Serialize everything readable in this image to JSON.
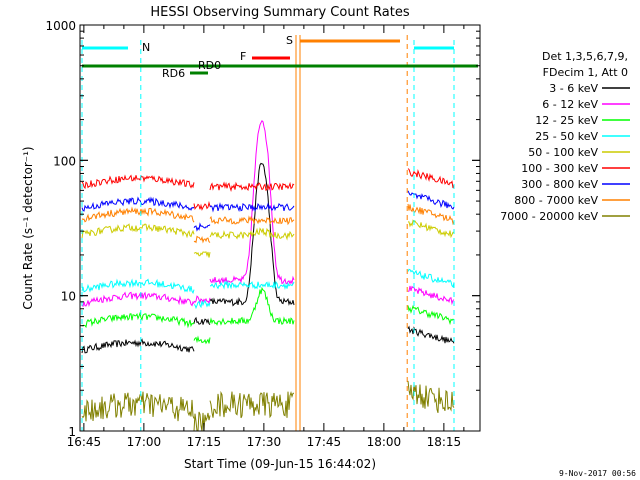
{
  "chart_data": {
    "type": "line",
    "title": "HESSI Observing Summary Count Rates",
    "xlabel": "Start Time (09-Jun-15 16:44:02)",
    "ylabel": "Count Rate (s⁻¹ detector⁻¹)",
    "y_scale": "log",
    "ylim": [
      1,
      1000
    ],
    "xlim_minutes": [
      0,
      100
    ],
    "y_tick_labels": [
      "1",
      "10",
      "100",
      "1000"
    ],
    "x_tick_labels": [
      "16:45",
      "17:00",
      "17:15",
      "17:30",
      "17:45",
      "18:00",
      "18:15"
    ],
    "legend": {
      "header1": "Det 1,3,5,6,7,9,",
      "header2": "FDecim 1, Att 0",
      "placement": "right"
    },
    "series": [
      {
        "name": "3 - 6 keV",
        "color": "#000000",
        "pre": 4.5,
        "mid": 9,
        "post": 4.5,
        "flare_peak": 95
      },
      {
        "name": "6 - 12 keV",
        "color": "#ff00ff",
        "pre": 10,
        "mid": 13,
        "post": 9,
        "flare_peak": 200
      },
      {
        "name": "12 - 25 keV",
        "color": "#00ff00",
        "pre": 7,
        "mid": 6.5,
        "post": 6.5,
        "flare_peak": 11
      },
      {
        "name": "25 - 50 keV",
        "color": "#00ffff",
        "pre": 12.5,
        "mid": 12,
        "post": 12,
        "flare_peak": 12
      },
      {
        "name": "50 - 100 keV",
        "color": "#cccc00",
        "pre": 32,
        "mid": 28,
        "post": 28,
        "flare_peak": 30
      },
      {
        "name": "100 - 300 keV",
        "color": "#ff0000",
        "pre": 74,
        "mid": 64,
        "post": 66,
        "flare_peak": 64
      },
      {
        "name": "300 - 800 keV",
        "color": "#0000ff",
        "pre": 50,
        "mid": 45,
        "post": 45,
        "flare_peak": 45
      },
      {
        "name": "800 - 7000 keV",
        "color": "#ff8000",
        "pre": 42,
        "mid": 36,
        "post": 36,
        "flare_peak": 36
      },
      {
        "name": "7000 - 20000 keV",
        "color": "#808000",
        "pre": 1.6,
        "mid": 1.6,
        "post": 1.6,
        "flare_peak": 1.6
      }
    ],
    "flags": [
      {
        "label": "N",
        "color": "#00ffff"
      },
      {
        "label": "S",
        "color": "#ff8000"
      },
      {
        "label": "F",
        "color": "#ff0000"
      },
      {
        "label": "RD6",
        "color": "#008000"
      },
      {
        "label": "RD0",
        "color": "#008000"
      }
    ],
    "timestamp": "9-Nov-2017 00:56"
  }
}
